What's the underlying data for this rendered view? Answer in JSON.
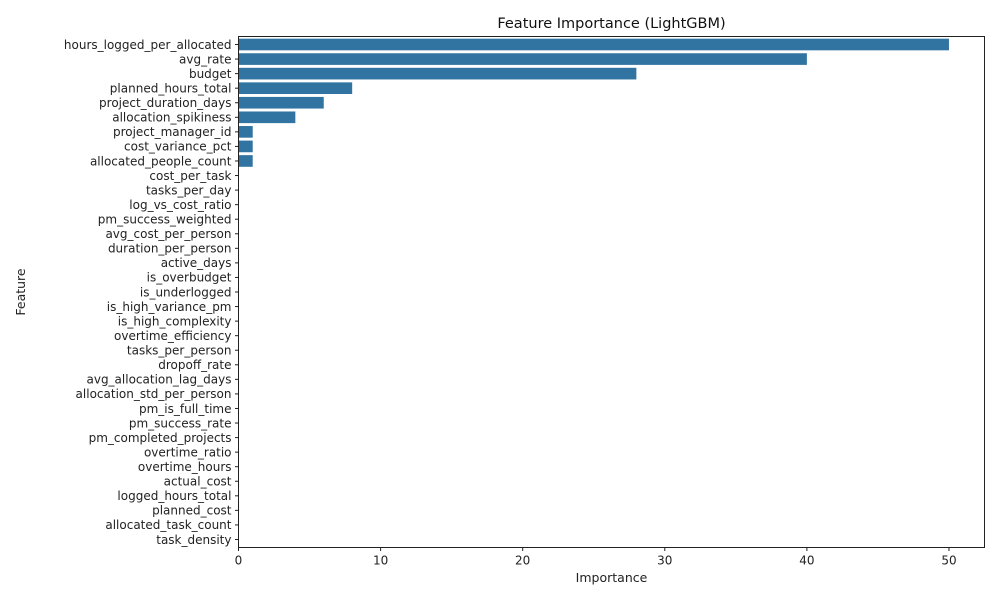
{
  "chart_data": {
    "type": "bar",
    "orientation": "horizontal",
    "title": "Feature Importance (LightGBM)",
    "xlabel": "Importance",
    "ylabel": "Feature",
    "xlim": [
      0,
      52.5
    ],
    "xticks": [
      0,
      10,
      20,
      30,
      40,
      50
    ],
    "grid": false,
    "legend": "none",
    "bar_color": "#3274a1",
    "categories": [
      "hours_logged_per_allocated",
      "avg_rate",
      "budget",
      "planned_hours_total",
      "project_duration_days",
      "allocation_spikiness",
      "project_manager_id",
      "cost_variance_pct",
      "allocated_people_count",
      "cost_per_task",
      "tasks_per_day",
      "log_vs_cost_ratio",
      "pm_success_weighted",
      "avg_cost_per_person",
      "duration_per_person",
      "active_days",
      "is_overbudget",
      "is_underlogged",
      "is_high_variance_pm",
      "is_high_complexity",
      "overtime_efficiency",
      "tasks_per_person",
      "dropoff_rate",
      "avg_allocation_lag_days",
      "allocation_std_per_person",
      "pm_is_full_time",
      "pm_success_rate",
      "pm_completed_projects",
      "overtime_ratio",
      "overtime_hours",
      "actual_cost",
      "logged_hours_total",
      "planned_cost",
      "allocated_task_count",
      "task_density"
    ],
    "values": [
      50,
      40,
      28,
      8,
      6,
      4,
      1,
      1,
      1,
      0,
      0,
      0,
      0,
      0,
      0,
      0,
      0,
      0,
      0,
      0,
      0,
      0,
      0,
      0,
      0,
      0,
      0,
      0,
      0,
      0,
      0,
      0,
      0,
      0,
      0
    ]
  }
}
